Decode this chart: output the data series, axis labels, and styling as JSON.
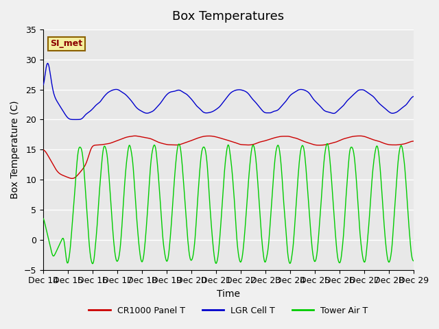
{
  "title": "Box Temperatures",
  "xlabel": "Time",
  "ylabel": "Box Temperature (C)",
  "ylim": [
    -5,
    35
  ],
  "xlim": [
    0,
    15
  ],
  "yticks": [
    -5,
    0,
    5,
    10,
    15,
    20,
    25,
    30,
    35
  ],
  "xtick_labels": [
    "Dec 14",
    "Dec 15",
    "Dec 16",
    "Dec 17",
    "Dec 18",
    "Dec 19",
    "Dec 20",
    "Dec 21",
    "Dec 22",
    "Dec 23",
    "Dec 24",
    "Dec 25",
    "Dec 26",
    "Dec 27",
    "Dec 28",
    "Dec 29"
  ],
  "background_color": "#e8e8e8",
  "plot_bg_color": "#e8e8e8",
  "line_colors": {
    "panel": "#cc0000",
    "cell": "#0000cc",
    "tower": "#00cc00"
  },
  "legend_entries": [
    "CR1000 Panel T",
    "LGR Cell T",
    "Tower Air T"
  ],
  "si_met_label": "SI_met",
  "title_fontsize": 13,
  "axis_label_fontsize": 10,
  "tick_fontsize": 9
}
